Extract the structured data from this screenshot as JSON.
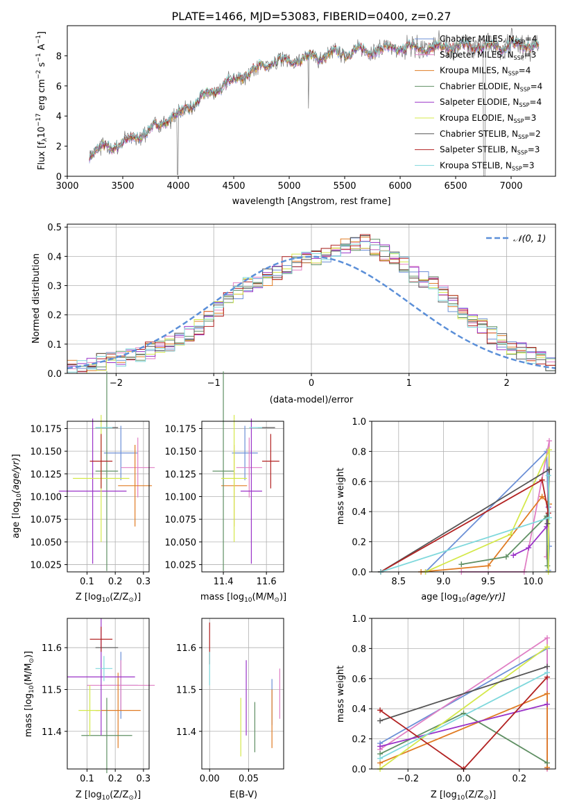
{
  "figure_title": "PLATE=1466, MJD=53083, FIBERID=0400, z=0.27",
  "chart_data": [
    {
      "type": "line",
      "title": "PLATE=1466, MJD=53083, FIBERID=0400, z=0.27",
      "xlabel": "wavelength [Angstrom, rest frame]",
      "ylabel": "Flux [f_λ 10^-17 erg cm^-2 s^-1 A^-1]",
      "xlim": [
        3000,
        7400
      ],
      "ylim": [
        0,
        10
      ],
      "xticks": [
        "3000",
        "3500",
        "4000",
        "4500",
        "5000",
        "5500",
        "6000",
        "6500",
        "7000"
      ],
      "yticks": [
        "0",
        "2",
        "4",
        "6",
        "8"
      ],
      "grid": false,
      "legend_position": "right",
      "continuum": {
        "x": [
          3200,
          3300,
          3400,
          3500,
          3600,
          3700,
          3800,
          3900,
          4000,
          4100,
          4200,
          4300,
          4400,
          4500,
          4600,
          4700,
          4800,
          4900,
          5000,
          5200,
          5400,
          5600,
          5800,
          6000,
          6200,
          6400,
          6600,
          6800,
          7000,
          7200
        ],
        "y": [
          1.5,
          1.8,
          2.0,
          2.2,
          2.5,
          2.9,
          3.3,
          3.8,
          4.1,
          4.6,
          5.1,
          5.6,
          6.0,
          6.4,
          6.8,
          7.1,
          7.4,
          7.6,
          7.6,
          7.9,
          8.1,
          8.3,
          8.4,
          8.5,
          8.5,
          8.6,
          8.6,
          8.6,
          8.7,
          8.7
        ]
      },
      "series": [
        {
          "name": "Chabrier MILES, N_SSP=4",
          "label_main": "Chabrier MILES, N",
          "label_sub": "SSP",
          "label_tail": "=4",
          "color": "#6b8fd6"
        },
        {
          "name": "Salpeter MILES, N_SSP=3",
          "label_main": "Salpeter MILES, N",
          "label_sub": "SSP",
          "label_tail": "=3",
          "color": "#e07fc4"
        },
        {
          "name": "Kroupa MILES, N_SSP=4",
          "label_main": "Kroupa MILES, N",
          "label_sub": "SSP",
          "label_tail": "=4",
          "color": "#e07b22"
        },
        {
          "name": "Chabrier ELODIE, N_SSP=4",
          "label_main": "Chabrier ELODIE, N",
          "label_sub": "SSP",
          "label_tail": "=4",
          "color": "#5f8f63"
        },
        {
          "name": "Salpeter ELODIE, N_SSP=4",
          "label_main": "Salpeter ELODIE, N",
          "label_sub": "SSP",
          "label_tail": "=4",
          "color": "#9a32c8"
        },
        {
          "name": "Kroupa ELODIE, N_SSP=3",
          "label_main": "Kroupa ELODIE, N",
          "label_sub": "SSP",
          "label_tail": "=3",
          "color": "#d4e84a"
        },
        {
          "name": "Chabrier STELIB, N_SSP=2",
          "label_main": "Chabrier STELIB, N",
          "label_sub": "SSP",
          "label_tail": "=2",
          "color": "#555555"
        },
        {
          "name": "Salpeter STELIB, N_SSP=3",
          "label_main": "Salpeter STELIB, N",
          "label_sub": "SSP",
          "label_tail": "=3",
          "color": "#b22222"
        },
        {
          "name": "Kroupa STELIB, N_SSP=3",
          "label_main": "Kroupa STELIB, N",
          "label_sub": "SSP",
          "label_tail": "=3",
          "color": "#7fd8dc"
        }
      ]
    },
    {
      "type": "histogram",
      "xlabel": "(data-model)/error",
      "ylabel": "Normed distribution",
      "xlim": [
        -2.5,
        2.5
      ],
      "ylim": [
        0,
        0.51
      ],
      "xticks": [
        "−2",
        "−1",
        "0",
        "1",
        "2"
      ],
      "yticks": [
        "0.0",
        "0.1",
        "0.2",
        "0.3",
        "0.4",
        "0.5"
      ],
      "grid": true,
      "legend_label": "𝒩(0, 1)",
      "legend_position": "top-right",
      "gaussian_color": "#5b8fd8",
      "bin_width": 0.1,
      "bin_start": -2.5,
      "heights": [
        0.02,
        0.02,
        0.03,
        0.04,
        0.045,
        0.05,
        0.055,
        0.065,
        0.08,
        0.09,
        0.1,
        0.12,
        0.14,
        0.16,
        0.19,
        0.22,
        0.25,
        0.28,
        0.3,
        0.31,
        0.33,
        0.35,
        0.37,
        0.38,
        0.39,
        0.4,
        0.41,
        0.42,
        0.43,
        0.45,
        0.45,
        0.43,
        0.41,
        0.39,
        0.37,
        0.34,
        0.32,
        0.3,
        0.27,
        0.24,
        0.21,
        0.18,
        0.16,
        0.13,
        0.11,
        0.09,
        0.075,
        0.06,
        0.045,
        0.035
      ]
    },
    {
      "type": "scatter",
      "xlabel": "Z [log10(Z/Z⊙)]",
      "xlabel_main": "Z [log",
      "xlabel_sub": "10",
      "xlabel_tail": "(Z/Z",
      "xlabel_sub2": "⊙",
      "xlabel_end": ")]",
      "ylabel": "age [log10(age/yr)]",
      "xlim": [
        0.03,
        0.32
      ],
      "ylim": [
        10.017,
        10.183
      ],
      "xticks": [
        0.1,
        0.2,
        0.3
      ],
      "yticks": [
        10.025,
        10.05,
        10.075,
        10.1,
        10.125,
        10.15,
        10.175
      ],
      "points": [
        {
          "x": 0.22,
          "y": 10.148,
          "xerr": 0.06,
          "yerr": 0.03,
          "color": "#6b8fd6"
        },
        {
          "x": 0.28,
          "y": 10.132,
          "xerr": 0.06,
          "yerr": 0.033,
          "color": "#e07fc4"
        },
        {
          "x": 0.27,
          "y": 10.112,
          "xerr": 0.06,
          "yerr": 0.045,
          "color": "#e07b22"
        },
        {
          "x": 0.17,
          "y": 10.128,
          "xerr": 0.04,
          "yerr": 0.11,
          "color": "#5f8f63"
        },
        {
          "x": 0.12,
          "y": 10.106,
          "xerr": 0.12,
          "yerr": 0.08,
          "color": "#9a32c8"
        },
        {
          "x": 0.15,
          "y": 10.12,
          "xerr": 0.1,
          "yerr": 0.07,
          "color": "#d4e84a"
        },
        {
          "x": 0.17,
          "y": 10.176,
          "xerr": 0.04,
          "yerr": 0.0,
          "color": "#555555"
        },
        {
          "x": 0.15,
          "y": 10.139,
          "xerr": 0.04,
          "yerr": 0.03,
          "color": "#b22222"
        },
        {
          "x": 0.16,
          "y": 10.176,
          "xerr": 0.03,
          "yerr": 0.0,
          "color": "#7fd8dc"
        }
      ]
    },
    {
      "type": "scatter",
      "xlabel": "mass [log10(M/M⊙)]",
      "xlabel_main": "mass [log",
      "xlabel_sub": "10",
      "xlabel_tail": "(M/M",
      "xlabel_sub2": "⊙",
      "xlabel_end": ")]",
      "xlim": [
        11.3,
        11.68
      ],
      "ylim": [
        10.017,
        10.183
      ],
      "xticks": [
        11.4,
        11.6
      ],
      "yticks": [
        10.025,
        10.05,
        10.075,
        10.1,
        10.125,
        10.15,
        10.175
      ],
      "points": [
        {
          "x": 11.5,
          "y": 10.148,
          "xerr": 0.06,
          "yerr": 0.03,
          "color": "#6b8fd6"
        },
        {
          "x": 11.52,
          "y": 10.132,
          "xerr": 0.06,
          "yerr": 0.033,
          "color": "#e07fc4"
        },
        {
          "x": 11.45,
          "y": 10.112,
          "xerr": 0.06,
          "yerr": 0.045,
          "color": "#e07b22"
        },
        {
          "x": 11.4,
          "y": 10.128,
          "xerr": 0.05,
          "yerr": 0.11,
          "color": "#5f8f63"
        },
        {
          "x": 11.53,
          "y": 10.106,
          "xerr": 0.05,
          "yerr": 0.08,
          "color": "#9a32c8"
        },
        {
          "x": 11.45,
          "y": 10.12,
          "xerr": 0.06,
          "yerr": 0.07,
          "color": "#d4e84a"
        },
        {
          "x": 11.6,
          "y": 10.176,
          "xerr": 0.04,
          "yerr": 0.0,
          "color": "#555555"
        },
        {
          "x": 11.62,
          "y": 10.139,
          "xerr": 0.04,
          "yerr": 0.03,
          "color": "#b22222"
        },
        {
          "x": 11.55,
          "y": 10.176,
          "xerr": 0.03,
          "yerr": 0.0,
          "color": "#7fd8dc"
        }
      ]
    },
    {
      "type": "line",
      "xlabel": "age [log10(age/yr)]",
      "xlabel_main": "age  [log",
      "xlabel_sub": "10",
      "xlabel_tail": "(age/yr)]",
      "ylabel": "mass weight",
      "xlim": [
        8.2,
        10.25
      ],
      "ylim": [
        0,
        1
      ],
      "xticks": [
        8.5,
        9.0,
        9.5,
        10.0
      ],
      "yticks": [
        0.0,
        0.2,
        0.4,
        0.6,
        0.8,
        1.0
      ],
      "grid": true,
      "series": [
        {
          "color": "#6b8fd6",
          "points": [
            [
              8.8,
              0.0
            ],
            [
              10.15,
              0.8
            ],
            [
              10.18,
              0.17
            ],
            [
              10.17,
              0.01
            ]
          ]
        },
        {
          "color": "#e07fc4",
          "points": [
            [
              9.2,
              0.0
            ],
            [
              9.9,
              0.0
            ],
            [
              10.18,
              0.87
            ],
            [
              10.15,
              0.1
            ]
          ]
        },
        {
          "color": "#e07b22",
          "points": [
            [
              8.75,
              0.0
            ],
            [
              9.5,
              0.04
            ],
            [
              10.1,
              0.5
            ],
            [
              10.18,
              0.45
            ]
          ]
        },
        {
          "color": "#5f8f63",
          "points": [
            [
              9.2,
              0.05
            ],
            [
              9.7,
              0.1
            ],
            [
              10.15,
              0.37
            ],
            [
              10.16,
              0.04
            ]
          ]
        },
        {
          "color": "#9a32c8",
          "points": [
            [
              9.78,
              0.11
            ],
            [
              9.95,
              0.16
            ],
            [
              10.15,
              0.3
            ],
            [
              10.17,
              0.43
            ]
          ]
        },
        {
          "color": "#d4e84a",
          "points": [
            [
              8.8,
              0.0
            ],
            [
              9.75,
              0.25
            ],
            [
              10.18,
              0.81
            ],
            [
              10.17,
              0.0
            ]
          ]
        },
        {
          "color": "#555555",
          "points": [
            [
              8.3,
              0.0
            ],
            [
              10.18,
              0.68
            ],
            [
              10.16,
              0.32
            ]
          ]
        },
        {
          "color": "#b22222",
          "points": [
            [
              8.3,
              0.0
            ],
            [
              10.1,
              0.61
            ],
            [
              10.17,
              0.39
            ]
          ]
        },
        {
          "color": "#7fd8dc",
          "points": [
            [
              8.3,
              0.0
            ],
            [
              10.18,
              0.36
            ],
            [
              10.17,
              0.64
            ]
          ]
        }
      ]
    },
    {
      "type": "scatter",
      "xlabel": "Z [log10(Z/Z⊙)]",
      "xlabel_main": "Z [log",
      "xlabel_sub": "10",
      "xlabel_tail": "(Z/Z",
      "xlabel_sub2": "⊙",
      "xlabel_end": ")]",
      "ylabel": "mass [log10(M/M⊙)]",
      "xlim": [
        0.03,
        0.32
      ],
      "ylim": [
        11.31,
        11.67
      ],
      "xticks": [
        0.1,
        0.2,
        0.3
      ],
      "yticks": [
        11.4,
        11.5,
        11.6
      ],
      "points": [
        {
          "x": 0.22,
          "y": 11.51,
          "xerr": 0.06,
          "yerr": 0.08,
          "color": "#6b8fd6"
        },
        {
          "x": 0.22,
          "y": 11.51,
          "xerr": 0.12,
          "yerr": 0.06,
          "color": "#e07fc4"
        },
        {
          "x": 0.21,
          "y": 11.45,
          "xerr": 0.08,
          "yerr": 0.09,
          "color": "#e07b22"
        },
        {
          "x": 0.17,
          "y": 11.39,
          "xerr": 0.09,
          "yerr": 0.09,
          "color": "#5f8f63"
        },
        {
          "x": 0.15,
          "y": 11.53,
          "xerr": 0.12,
          "yerr": 0.14,
          "color": "#9a32c8"
        },
        {
          "x": 0.11,
          "y": 11.45,
          "xerr": 0.04,
          "yerr": 0.06,
          "color": "#d4e84a"
        },
        {
          "x": 0.17,
          "y": 11.6,
          "xerr": 0.04,
          "yerr": 0.0,
          "color": "#555555"
        },
        {
          "x": 0.15,
          "y": 11.62,
          "xerr": 0.04,
          "yerr": 0.03,
          "color": "#b22222"
        },
        {
          "x": 0.16,
          "y": 11.55,
          "xerr": 0.03,
          "yerr": 0.03,
          "color": "#7fd8dc"
        }
      ]
    },
    {
      "type": "scatter",
      "xlabel": "E(B-V)",
      "xlim": [
        -0.01,
        0.095
      ],
      "ylim": [
        11.31,
        11.67
      ],
      "xticks": [
        0.0,
        0.05
      ],
      "yticks": [
        11.4,
        11.5,
        11.6
      ],
      "points": [
        {
          "x": 0.08,
          "y": 11.47,
          "xerr": 0.0,
          "yerr": 0.055,
          "color": "#6b8fd6"
        },
        {
          "x": 0.09,
          "y": 11.49,
          "xerr": 0.0,
          "yerr": 0.06,
          "color": "#e07fc4"
        },
        {
          "x": 0.08,
          "y": 11.43,
          "xerr": 0.0,
          "yerr": 0.07,
          "color": "#e07b22"
        },
        {
          "x": 0.058,
          "y": 11.41,
          "xerr": 0.0,
          "yerr": 0.06,
          "color": "#5f8f63"
        },
        {
          "x": 0.047,
          "y": 11.48,
          "xerr": 0.0,
          "yerr": 0.09,
          "color": "#9a32c8"
        },
        {
          "x": 0.04,
          "y": 11.41,
          "xerr": 0.0,
          "yerr": 0.07,
          "color": "#d4e84a"
        },
        {
          "x": 0.0,
          "y": 11.6,
          "xerr": 0.0,
          "yerr": 0.0,
          "color": "#555555"
        },
        {
          "x": 0.0,
          "y": 11.61,
          "xerr": 0.0,
          "yerr": 0.05,
          "color": "#b22222"
        },
        {
          "x": 0.0,
          "y": 11.55,
          "xerr": 0.0,
          "yerr": 0.04,
          "color": "#7fd8dc"
        }
      ]
    },
    {
      "type": "line",
      "xlabel": "Z [log10(Z/Z⊙)]",
      "xlabel_main": "Z [log",
      "xlabel_sub": "10",
      "xlabel_tail": "(Z/Z",
      "xlabel_sub2": "⊙",
      "xlabel_end": ")]",
      "ylabel": "mass weight",
      "xlim": [
        -0.33,
        0.33
      ],
      "ylim": [
        0,
        1
      ],
      "xticks": [
        "−0.2",
        "0.0",
        "0.2"
      ],
      "xtick_values": [
        -0.2,
        0.0,
        0.2
      ],
      "yticks": [
        0.0,
        0.2,
        0.4,
        0.6,
        0.8,
        1.0
      ],
      "grid": true,
      "series": [
        {
          "color": "#6b8fd6",
          "points": [
            [
              -0.3,
              0.17
            ],
            [
              0.3,
              0.8
            ],
            [
              0.3,
              0.01
            ]
          ]
        },
        {
          "color": "#e07fc4",
          "points": [
            [
              -0.3,
              0.13
            ],
            [
              0.3,
              0.87
            ],
            [
              0.3,
              0.0
            ]
          ]
        },
        {
          "color": "#e07b22",
          "points": [
            [
              -0.3,
              0.04
            ],
            [
              0.3,
              0.5
            ],
            [
              0.3,
              0.01
            ]
          ]
        },
        {
          "color": "#5f8f63",
          "points": [
            [
              -0.3,
              0.1
            ],
            [
              0.0,
              0.37
            ],
            [
              0.3,
              0.04
            ]
          ]
        },
        {
          "color": "#9a32c8",
          "points": [
            [
              -0.3,
              0.15
            ],
            [
              0.3,
              0.43
            ]
          ]
        },
        {
          "color": "#d4e84a",
          "points": [
            [
              -0.3,
              0.0
            ],
            [
              0.3,
              0.81
            ]
          ]
        },
        {
          "color": "#555555",
          "points": [
            [
              -0.3,
              0.32
            ],
            [
              0.3,
              0.68
            ]
          ]
        },
        {
          "color": "#b22222",
          "points": [
            [
              -0.3,
              0.39
            ],
            [
              0.0,
              0.0
            ],
            [
              0.3,
              0.61
            ]
          ]
        },
        {
          "color": "#7fd8dc",
          "points": [
            [
              -0.3,
              0.07
            ],
            [
              0.3,
              0.64
            ]
          ]
        }
      ]
    }
  ]
}
